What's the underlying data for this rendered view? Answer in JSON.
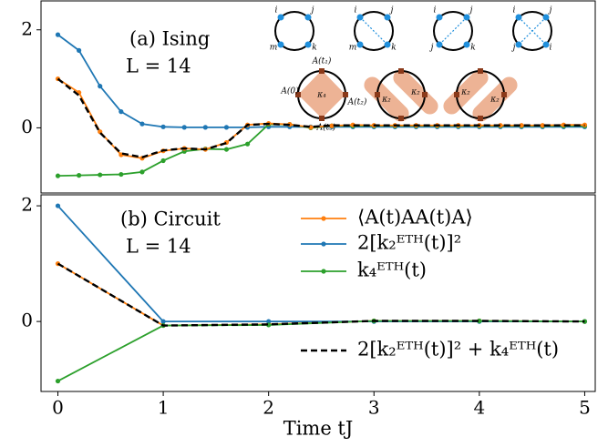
{
  "chart_data": [
    {
      "type": "line",
      "annotations": [
        "(a) Ising",
        "L = 14"
      ],
      "x": [
        0,
        0.2,
        0.4,
        0.6,
        0.8,
        1,
        1.2,
        1.4,
        1.6,
        1.8,
        2,
        2.2,
        2.4,
        2.6,
        2.8,
        3,
        3.2,
        3.4,
        3.6,
        3.8,
        4,
        4.2,
        4.4,
        4.6,
        4.8,
        5
      ],
      "xlim": [
        -0.16,
        5.1
      ],
      "ylim": [
        -1.33,
        2.59
      ],
      "yticks": [
        0,
        2
      ],
      "series": [
        {
          "color": "#1f77b4",
          "values": [
            1.9,
            1.58,
            0.85,
            0.33,
            0.08,
            0.02,
            0.01,
            0.01,
            0.01,
            0.01,
            0.02,
            0.02,
            0.02,
            0.02,
            0.02,
            0.02,
            0.02,
            0.02,
            0.02,
            0.02,
            0.02,
            0.02,
            0.02,
            0.02,
            0.02,
            0.02
          ]
        },
        {
          "color": "#2ca02c",
          "values": [
            -0.98,
            -0.97,
            -0.96,
            -0.95,
            -0.9,
            -0.67,
            -0.48,
            -0.43,
            -0.44,
            -0.33,
            0.07,
            0.07,
            0.0,
            0.04,
            0.04,
            0.04,
            0.04,
            0.04,
            0.04,
            0.04,
            0.04,
            0.04,
            0.04,
            0.04,
            0.04,
            0.04
          ]
        },
        {
          "color": "#ff7f0e",
          "values": [
            1.0,
            0.72,
            -0.08,
            -0.55,
            -0.62,
            -0.47,
            -0.42,
            -0.44,
            -0.3,
            0.06,
            0.09,
            0.07,
            0.01,
            0.04,
            0.06,
            0.05,
            0.05,
            0.05,
            0.05,
            0.05,
            0.05,
            0.05,
            0.05,
            0.05,
            0.06,
            0.06
          ]
        },
        {
          "color": "#000000",
          "dashed": true,
          "values": [
            1.0,
            0.66,
            -0.1,
            -0.52,
            -0.6,
            -0.46,
            -0.42,
            -0.44,
            -0.31,
            0.06,
            0.08,
            0.06,
            0.02,
            0.05,
            0.05,
            0.05,
            0.05,
            0.05,
            0.05,
            0.05,
            0.05,
            0.05,
            0.05,
            0.05,
            0.05,
            0.05
          ]
        }
      ],
      "inset_labels": [
        "i",
        "j",
        "m",
        "k",
        "i",
        "j",
        "m",
        "k",
        "i",
        "j",
        "j",
        "k",
        "i",
        "j",
        "j",
        "i",
        "A(t₁)",
        "A(0)",
        "A(t₂)",
        "A(t₃)",
        "κ₄",
        "κ₂",
        "κ₂",
        "κ₂",
        "κ₂"
      ]
    },
    {
      "type": "line",
      "annotations": [
        "(b) Circuit",
        "L = 14"
      ],
      "x": [
        0,
        1,
        2,
        3,
        4,
        5
      ],
      "xlim": [
        -0.16,
        5.1
      ],
      "ylim": [
        -1.21,
        2.19
      ],
      "yticks": [
        0,
        2
      ],
      "xticks": [
        0,
        1,
        2,
        3,
        4,
        5
      ],
      "xlabel": "Time tJ",
      "series": [
        {
          "name": "⟨A(t)AA(t)A⟩",
          "color": "#ff7f0e",
          "values": [
            1.0,
            -0.07,
            -0.05,
            0.01,
            0.01,
            0.0
          ]
        },
        {
          "name": "2[k₂ᴱᵀᴴ(t)]²",
          "color": "#1f77b4",
          "values": [
            2.0,
            0.0,
            0.0,
            0.0,
            0.0,
            0.0
          ]
        },
        {
          "name": "k₄ᴱᵀᴴ(t)",
          "color": "#2ca02c",
          "values": [
            -1.03,
            -0.07,
            -0.06,
            0.01,
            0.01,
            0.0
          ]
        },
        {
          "name": "2[k₂ᴱᵀᴴ(t)]² + k₄ᴱᵀᴴ(t)",
          "color": "#000000",
          "dashed": true,
          "values": [
            1.0,
            -0.07,
            -0.05,
            0.01,
            0.01,
            0.0
          ]
        }
      ]
    }
  ]
}
